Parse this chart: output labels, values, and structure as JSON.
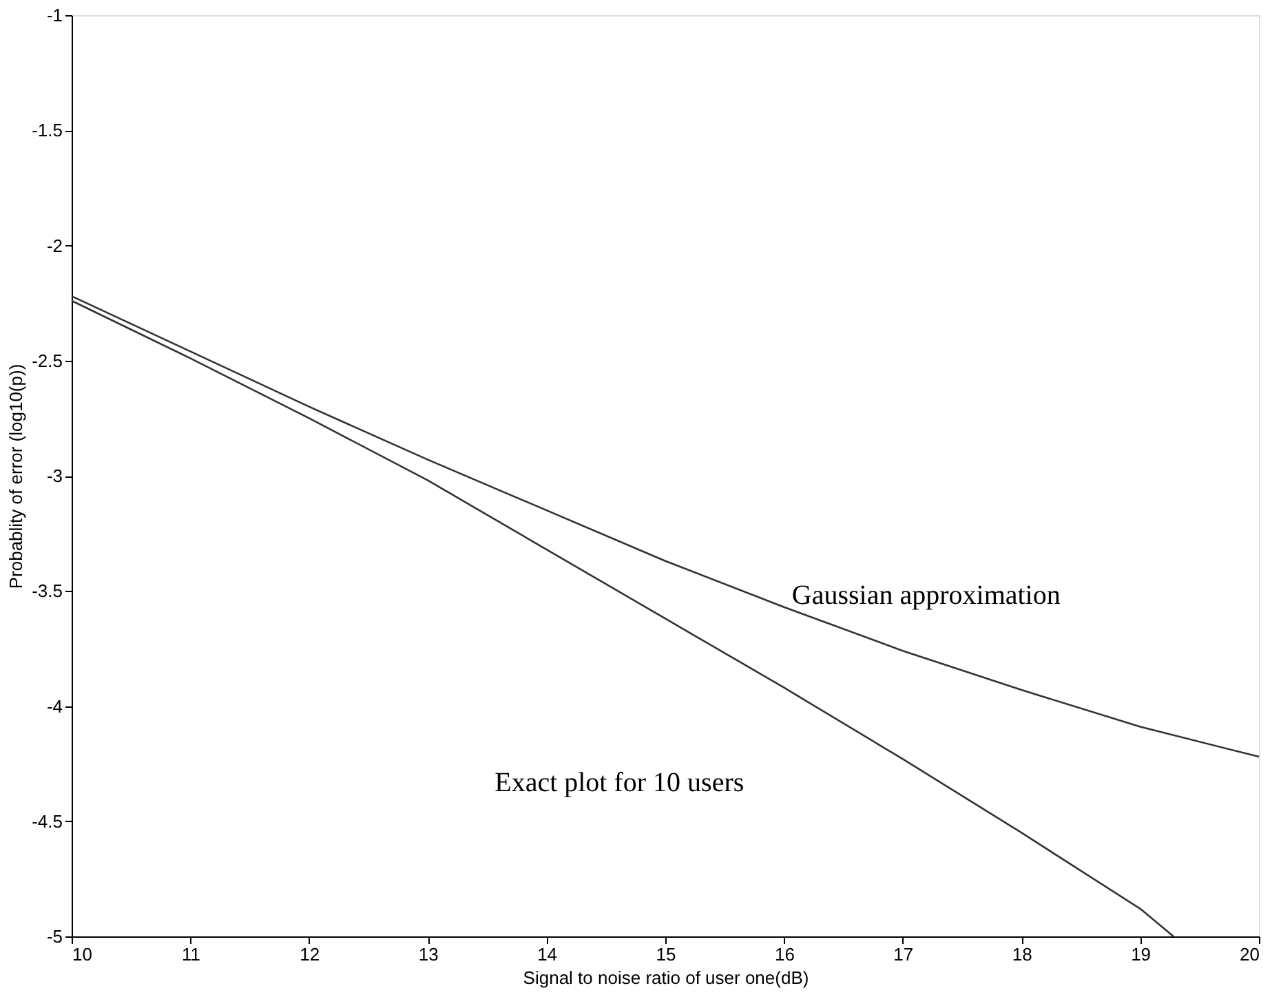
{
  "chart_data": {
    "type": "line",
    "xlabel": "Signal to noise ratio of user one(dB)",
    "ylabel": "Probablity of error (log10(p))",
    "xlim": [
      10,
      20
    ],
    "xticks": [
      10,
      11,
      12,
      13,
      14,
      15,
      16,
      17,
      18,
      19,
      20
    ],
    "ylim": [
      -5,
      -1
    ],
    "yticks": [
      -5,
      -4.5,
      -4,
      -3.5,
      -3,
      -2.5,
      -2,
      -1.5,
      -1
    ],
    "grid": false,
    "marker": "none",
    "line_style": "solid",
    "series": [
      {
        "color": "#333333",
        "x": [
          10,
          11,
          12,
          13,
          14,
          15,
          16,
          17,
          18,
          19,
          20
        ],
        "values": [
          -2.22,
          -2.46,
          -2.7,
          -2.93,
          -3.15,
          -3.37,
          -3.57,
          -3.76,
          -3.93,
          -4.09,
          -4.22
        ]
      },
      {
        "color": "#333333",
        "x": [
          10,
          11,
          12,
          13,
          14,
          15,
          16,
          17,
          18,
          19,
          19.28
        ],
        "values": [
          -2.24,
          -2.49,
          -2.75,
          -3.02,
          -3.32,
          -3.62,
          -3.92,
          -4.23,
          -4.55,
          -4.88,
          -5.0
        ]
      }
    ],
    "annotations": [
      "Gaussian approximation",
      "Exact plot for 10 users"
    ]
  }
}
